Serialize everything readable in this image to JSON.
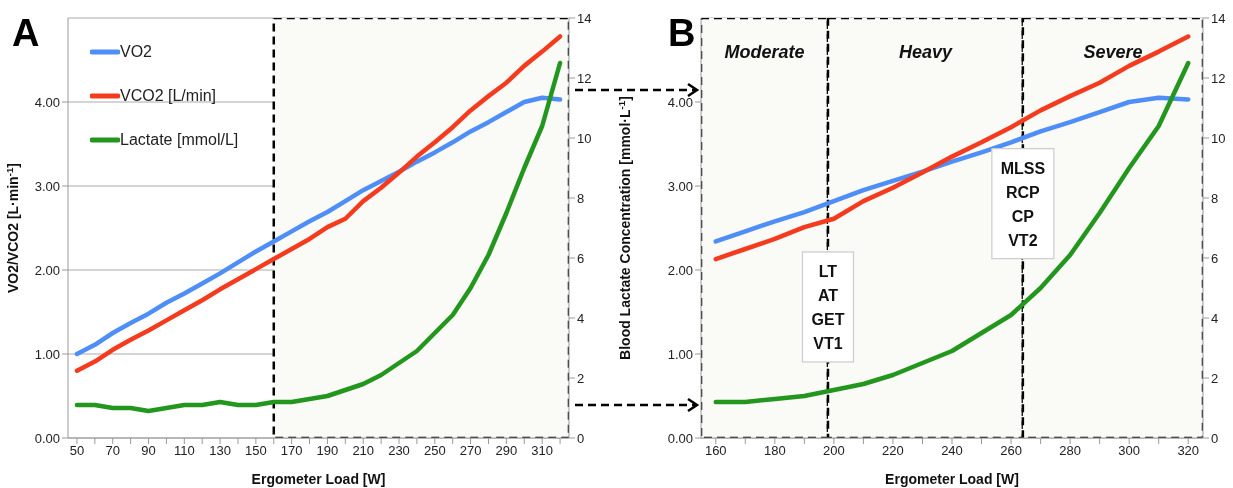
{
  "chart_data": [
    {
      "type": "line",
      "title": "A",
      "xlabel": "Ergometer Load [W]",
      "ylabel": "VO2/VCO2 [L·min$^{-1}$]",
      "y2label": "Blood Lactate Concentration [mmol·L$^{-1}$]",
      "x": [
        50,
        60,
        70,
        80,
        90,
        100,
        110,
        120,
        130,
        140,
        150,
        160,
        170,
        180,
        190,
        200,
        210,
        220,
        230,
        240,
        250,
        260,
        270,
        280,
        290,
        300,
        310,
        320
      ],
      "series": [
        {
          "name": "VO2",
          "color": "#4f8ef7",
          "values": [
            1.0,
            1.11,
            1.25,
            1.37,
            1.48,
            1.61,
            1.72,
            1.84,
            1.96,
            2.09,
            2.22,
            2.34,
            2.46,
            2.58,
            2.69,
            2.82,
            2.95,
            3.06,
            3.17,
            3.29,
            3.4,
            3.52,
            3.65,
            3.76,
            3.88,
            4.0,
            4.05,
            4.03
          ]
        },
        {
          "name": "VCO2 [L/min]",
          "color": "#f53b1e",
          "values": [
            0.8,
            0.91,
            1.05,
            1.17,
            1.28,
            1.4,
            1.52,
            1.64,
            1.77,
            1.89,
            2.01,
            2.13,
            2.25,
            2.37,
            2.51,
            2.61,
            2.82,
            2.98,
            3.16,
            3.35,
            3.52,
            3.7,
            3.9,
            4.07,
            4.23,
            4.43,
            4.6,
            4.78
          ]
        },
        {
          "name": "Lactate [mmol/L]",
          "color": "#23961e",
          "axis": "y2",
          "values": [
            1.1,
            1.1,
            1.0,
            1.0,
            0.9,
            1.0,
            1.1,
            1.1,
            1.2,
            1.1,
            1.1,
            1.2,
            1.2,
            1.3,
            1.4,
            1.6,
            1.8,
            2.1,
            2.5,
            2.9,
            3.5,
            4.1,
            5.0,
            6.1,
            7.5,
            9.0,
            10.4,
            12.5
          ]
        }
      ],
      "xlim": [
        45,
        325
      ],
      "xticks": [
        50,
        {
          "value": 60,
          "label": null
        },
        70,
        {
          "value": 80,
          "label": null
        },
        90,
        {
          "value": 100,
          "label": null
        },
        110,
        {
          "value": 120,
          "label": null
        },
        130,
        {
          "value": 140,
          "label": null
        },
        150,
        {
          "value": 160,
          "label": null
        },
        170,
        {
          "value": 180,
          "label": null
        },
        190,
        {
          "value": 200,
          "label": null
        },
        210,
        {
          "value": 220,
          "label": null
        },
        230,
        {
          "value": 240,
          "label": null
        },
        250,
        {
          "value": 260,
          "label": null
        },
        270,
        {
          "value": 280,
          "label": null
        },
        290,
        {
          "value": 300,
          "label": null
        },
        310,
        {
          "value": 320,
          "label": null
        }
      ],
      "ylim": [
        0,
        5
      ],
      "yticks": [
        {
          "value": 0,
          "label": "0.00"
        },
        {
          "value": 1,
          "label": "1.00"
        },
        {
          "value": 2,
          "label": "2.00"
        },
        {
          "value": 3,
          "label": "3.00"
        },
        {
          "value": 4,
          "label": "4.00"
        }
      ],
      "y2lim": [
        0,
        14
      ],
      "y2ticks": [
        0,
        2,
        4,
        6,
        8,
        10,
        12,
        14
      ],
      "bands": [
        {
          "axis": "x",
          "from": 160,
          "to": 325,
          "color": "#fafaf7"
        }
      ],
      "grid": "y",
      "legend": "top left",
      "marker": "none",
      "line_style": "solid"
    },
    {
      "type": "line",
      "title": "B",
      "xlabel": "Ergometer Load [W]",
      "x": [
        160,
        170,
        180,
        190,
        200,
        210,
        220,
        230,
        240,
        250,
        260,
        270,
        280,
        290,
        300,
        310,
        320
      ],
      "series": [
        {
          "color": "#4f8ef7",
          "values": [
            2.34,
            2.46,
            2.58,
            2.69,
            2.82,
            2.95,
            3.06,
            3.17,
            3.29,
            3.4,
            3.52,
            3.65,
            3.76,
            3.88,
            4.0,
            4.05,
            4.03
          ]
        },
        {
          "color": "#f53b1e",
          "values": [
            2.13,
            2.25,
            2.37,
            2.51,
            2.61,
            2.82,
            2.98,
            3.16,
            3.35,
            3.52,
            3.7,
            3.9,
            4.07,
            4.23,
            4.43,
            4.6,
            4.78
          ]
        },
        {
          "color": "#23961e",
          "axis": "y2",
          "values": [
            1.2,
            1.2,
            1.3,
            1.4,
            1.6,
            1.8,
            2.1,
            2.5,
            2.9,
            3.5,
            4.1,
            5.0,
            6.1,
            7.5,
            9.0,
            10.4,
            12.5
          ]
        }
      ],
      "xlim": [
        155,
        325
      ],
      "xticks": [
        160,
        {
          "value": 170,
          "label": null
        },
        180,
        {
          "value": 190,
          "label": null
        },
        200,
        {
          "value": 210,
          "label": null
        },
        220,
        {
          "value": 230,
          "label": null
        },
        240,
        {
          "value": 250,
          "label": null
        },
        260,
        {
          "value": 270,
          "label": null
        },
        280,
        {
          "value": 290,
          "label": null
        },
        300,
        {
          "value": 310,
          "label": null
        },
        320
      ],
      "ylim": [
        0,
        5
      ],
      "yticks": [
        {
          "value": 0,
          "label": "0.00"
        },
        {
          "value": 1,
          "label": "1.00"
        },
        {
          "value": 2,
          "label": "2.00"
        },
        {
          "value": 3,
          "label": "3.00"
        },
        {
          "value": 4,
          "label": "4.00"
        }
      ],
      "y2lim": [
        0,
        14
      ],
      "y2ticks": [
        0,
        2,
        4,
        6,
        8,
        10,
        12,
        14
      ],
      "bands": [
        {
          "axis": "x",
          "from": 155,
          "to": 198,
          "label": "Moderate",
          "color": "#fafaf7"
        },
        {
          "axis": "x",
          "from": 198,
          "to": 264,
          "label": "Heavy",
          "color": "#fafaf7"
        },
        {
          "axis": "x",
          "from": 264,
          "to": 325,
          "label": "Severe",
          "color": "#fafaf7"
        }
      ],
      "annotations": [
        {
          "text": "LT\nAT\nGET\nVT1",
          "x": 198,
          "y": 1.56
        },
        {
          "text": "MLSS\nRCP\nCP\nVT2",
          "x": 264,
          "y": 2.79
        }
      ],
      "grid": "y",
      "marker": "none",
      "line_style": "solid"
    }
  ]
}
